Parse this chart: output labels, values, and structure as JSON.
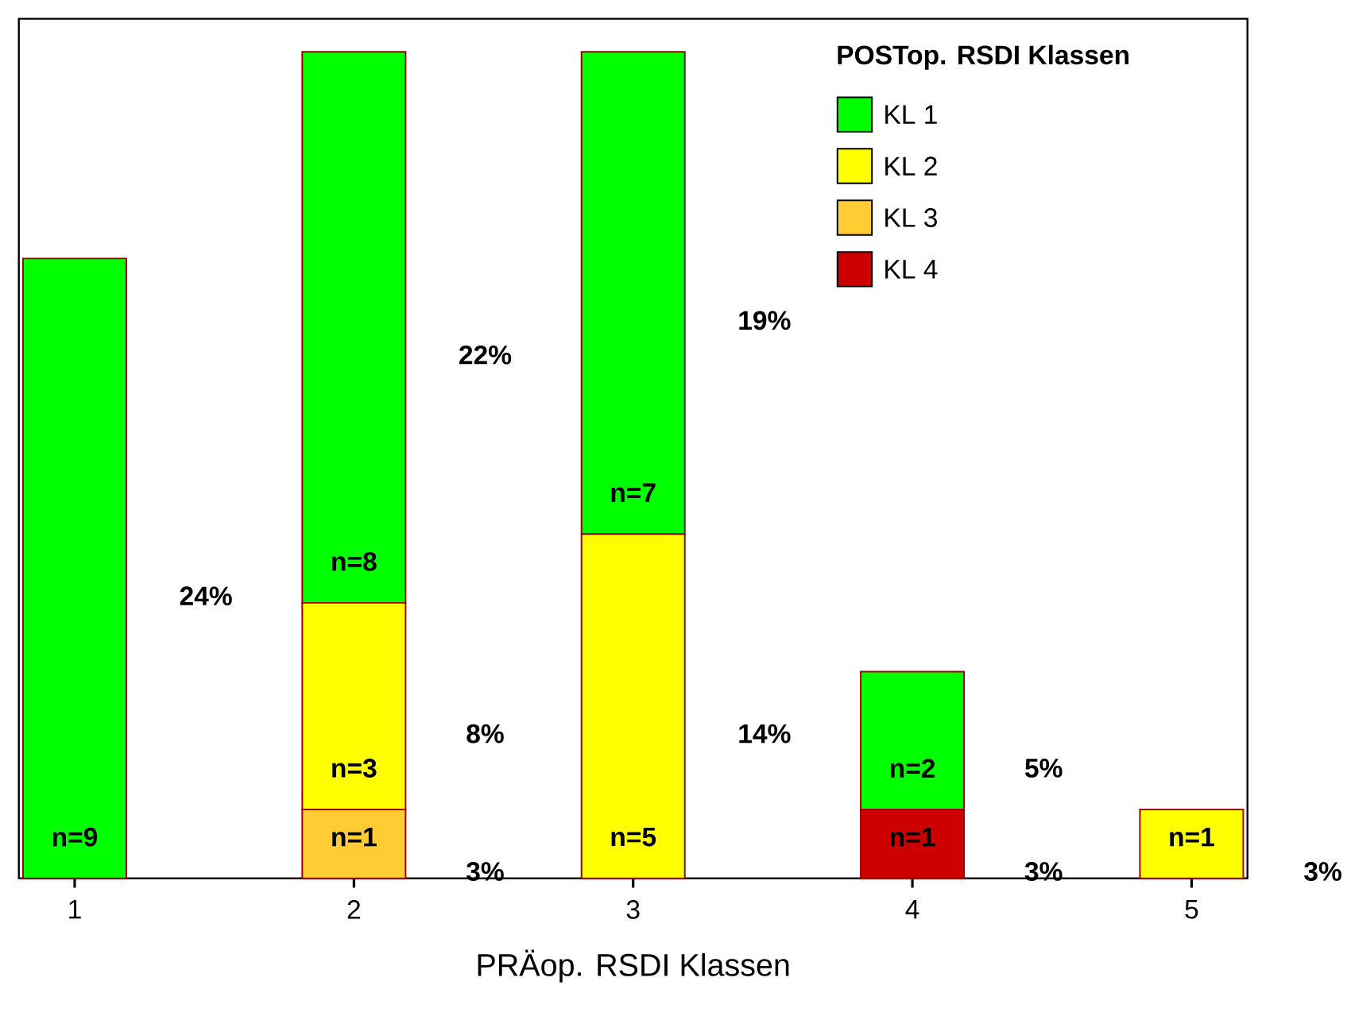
{
  "chart_data": {
    "type": "bar",
    "stacked": true,
    "xlabel": "PRÄop. RSDI Klassen",
    "legend_title": "POSTop. RSDI Klassen",
    "legend": "top right",
    "tick_labels": "x",
    "grid": false,
    "categories": [
      "1",
      "2",
      "3",
      "4",
      "5"
    ],
    "series": [
      {
        "name": "KL 4",
        "color": "#cc0000",
        "values": [
          0,
          0,
          0,
          1,
          0
        ],
        "value_labels": [
          null,
          null,
          null,
          "n=1",
          null
        ]
      },
      {
        "name": "KL 3",
        "color": "#ffcc33",
        "values": [
          0,
          1,
          0,
          0,
          0
        ],
        "value_labels": [
          null,
          "n=1",
          null,
          null,
          null
        ]
      },
      {
        "name": "KL 2",
        "color": "#ffff00",
        "values": [
          0,
          3,
          5,
          0,
          1
        ],
        "value_labels": [
          null,
          "n=3",
          "n=5",
          null,
          "n=1"
        ]
      },
      {
        "name": "KL 1",
        "color": "#00ff00",
        "values": [
          9,
          8,
          7,
          2,
          0
        ],
        "value_labels": [
          "n=9",
          "n=8",
          "n=7",
          "n=2",
          null
        ]
      }
    ],
    "annotations": [
      "24%",
      "22%",
      "8%",
      "3%",
      "19%",
      "14%",
      "5%",
      "3%",
      "3%"
    ]
  }
}
